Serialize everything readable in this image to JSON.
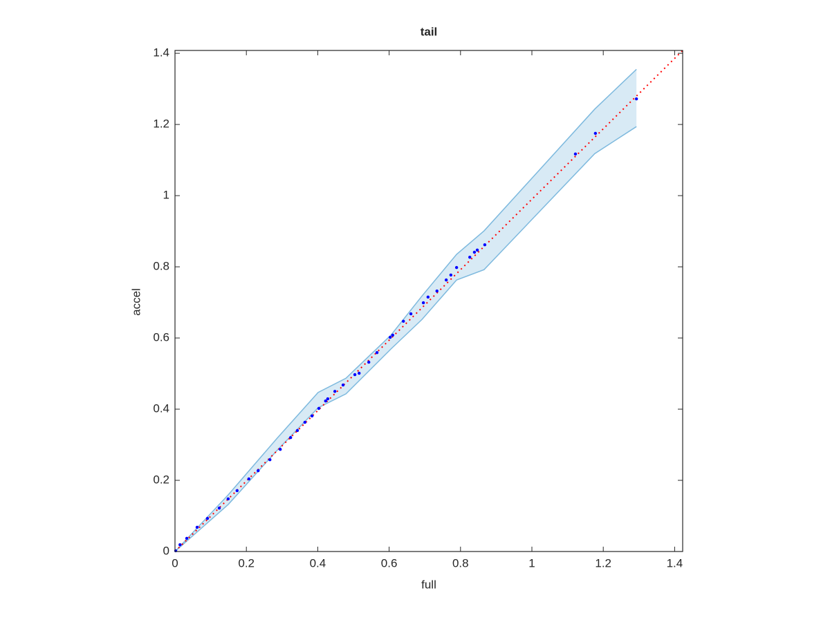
{
  "chart_data": {
    "type": "scatter",
    "title": "tail",
    "xlabel": "full",
    "ylabel": "accel",
    "xlim": [
      0,
      1.4225
    ],
    "ylim": [
      0,
      1.408
    ],
    "xticks": [
      0,
      0.2,
      0.4,
      0.6,
      0.8,
      1,
      1.2,
      1.4
    ],
    "yticks": [
      0,
      0.2,
      0.4,
      0.6,
      0.8,
      1,
      1.2,
      1.4
    ],
    "x": [
      1.293,
      1.178,
      1.122,
      0.868,
      0.847,
      0.839,
      0.826,
      0.789,
      0.773,
      0.76,
      0.734,
      0.709,
      0.696,
      0.661,
      0.64,
      0.61,
      0.603,
      0.566,
      0.543,
      0.516,
      0.504,
      0.471,
      0.448,
      0.428,
      0.422,
      0.403,
      0.384,
      0.364,
      0.343,
      0.324,
      0.295,
      0.266,
      0.233,
      0.207,
      0.174,
      0.149,
      0.124,
      0.091,
      0.062,
      0.033,
      0.014,
      0.002
    ],
    "y": [
      1.272,
      1.175,
      1.117,
      0.862,
      0.847,
      0.841,
      0.827,
      0.798,
      0.777,
      0.763,
      0.732,
      0.715,
      0.699,
      0.668,
      0.647,
      0.608,
      0.602,
      0.559,
      0.532,
      0.501,
      0.497,
      0.468,
      0.45,
      0.429,
      0.423,
      0.402,
      0.381,
      0.363,
      0.34,
      0.32,
      0.287,
      0.258,
      0.227,
      0.204,
      0.171,
      0.148,
      0.122,
      0.093,
      0.068,
      0.037,
      0.019,
      0.002
    ],
    "color": "#0000ff",
    "reference_color": "#ff0000",
    "band": {
      "color": "#7db9de",
      "x": [
        0,
        0.149,
        0.285,
        0.401,
        0.479,
        0.605,
        0.692,
        0.789,
        0.866,
        1.176,
        1.293
      ],
      "upper": [
        0,
        0.159,
        0.317,
        0.447,
        0.487,
        0.608,
        0.718,
        0.835,
        0.901,
        1.243,
        1.355
      ],
      "lower": [
        0,
        0.132,
        0.283,
        0.404,
        0.443,
        0.569,
        0.652,
        0.763,
        0.792,
        1.118,
        1.194
      ]
    }
  }
}
